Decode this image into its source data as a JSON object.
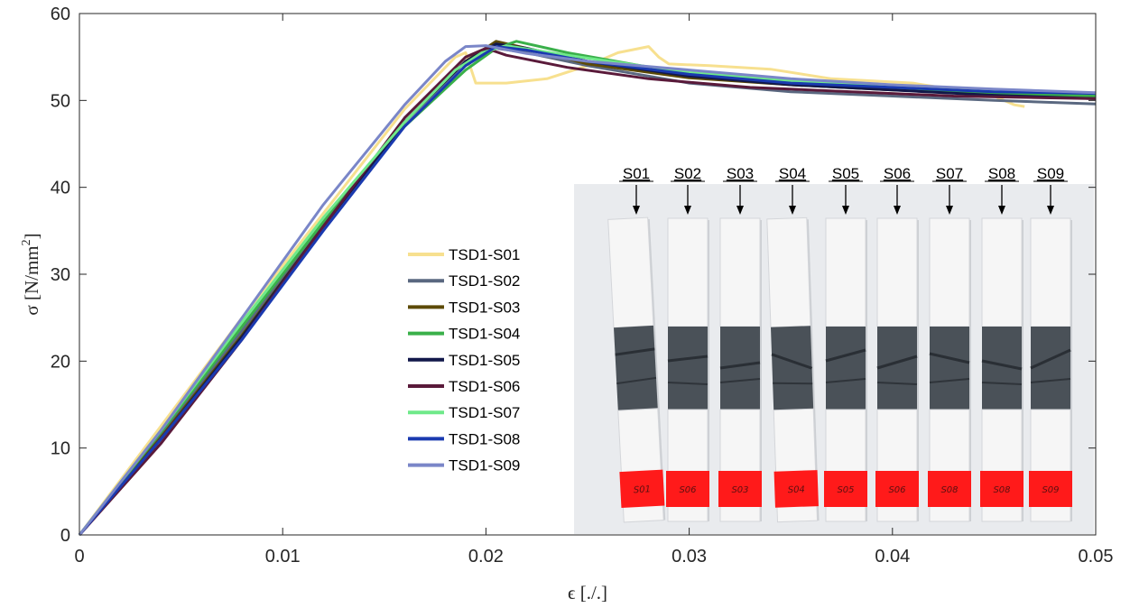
{
  "chart_data": {
    "type": "line",
    "title": "",
    "xlabel": "ϵ [./.]",
    "ylabel_prefix": "σ [N/mm",
    "ylabel_sup": "2",
    "ylabel_suffix": "]",
    "xlim": [
      0,
      0.05
    ],
    "ylim": [
      0,
      60
    ],
    "xticks": [
      0,
      0.01,
      0.02,
      0.03,
      0.04,
      0.05
    ],
    "xtick_labels": [
      "0",
      "0.01",
      "0.02",
      "0.03",
      "0.04",
      "0.05"
    ],
    "yticks": [
      0,
      10,
      20,
      30,
      40,
      50,
      60
    ],
    "ytick_labels": [
      "0",
      "10",
      "20",
      "30",
      "40",
      "50",
      "60"
    ],
    "grid": false,
    "legend_position": "center-left",
    "series": [
      {
        "name": "TSD1-S01",
        "color": "#f7e08f",
        "x": [
          0,
          0.004,
          0.008,
          0.012,
          0.016,
          0.0185,
          0.019,
          0.0195,
          0.021,
          0.023,
          0.025,
          0.0265,
          0.028,
          0.0285,
          0.029,
          0.031,
          0.034,
          0.037,
          0.041,
          0.045,
          0.046,
          0.0465
        ],
        "y": [
          0,
          12.5,
          25,
          37,
          49,
          55,
          55.5,
          52,
          52,
          52.5,
          54,
          55.5,
          56.2,
          55,
          54.2,
          54,
          53.6,
          52.5,
          52,
          50.5,
          49.5,
          49.3
        ]
      },
      {
        "name": "TSD1-S02",
        "color": "#5a6880",
        "x": [
          0,
          0.004,
          0.008,
          0.012,
          0.016,
          0.019,
          0.0205,
          0.022,
          0.025,
          0.03,
          0.035,
          0.04,
          0.045,
          0.05
        ],
        "y": [
          0,
          11.5,
          23.5,
          36,
          47.5,
          54.5,
          56,
          55.5,
          54,
          52,
          51,
          50.5,
          50,
          49.6
        ]
      },
      {
        "name": "TSD1-S03",
        "color": "#5c4a06",
        "x": [
          0,
          0.004,
          0.008,
          0.012,
          0.016,
          0.019,
          0.0205,
          0.022,
          0.025,
          0.03,
          0.035,
          0.04,
          0.045,
          0.05
        ],
        "y": [
          0,
          11.2,
          23,
          35.5,
          47.5,
          54.5,
          56.8,
          56,
          54.2,
          52.6,
          51.8,
          51.2,
          50.8,
          50.4
        ]
      },
      {
        "name": "TSD1-S04",
        "color": "#3ab04a",
        "x": [
          0,
          0.004,
          0.008,
          0.012,
          0.016,
          0.019,
          0.0205,
          0.0215,
          0.024,
          0.03,
          0.035,
          0.04,
          0.045,
          0.05
        ],
        "y": [
          0,
          11.8,
          24,
          36,
          47,
          53.5,
          56,
          56.8,
          55.5,
          53,
          52,
          51.3,
          50.8,
          50.5
        ]
      },
      {
        "name": "TSD1-S05",
        "color": "#12184a",
        "x": [
          0,
          0.004,
          0.008,
          0.012,
          0.016,
          0.019,
          0.0205,
          0.022,
          0.025,
          0.03,
          0.035,
          0.04,
          0.045,
          0.05
        ],
        "y": [
          0,
          11,
          22.8,
          35.5,
          47.5,
          54.5,
          56.5,
          56,
          54.5,
          52.8,
          51.8,
          51.2,
          50.6,
          50.2
        ]
      },
      {
        "name": "TSD1-S06",
        "color": "#5a1a3a",
        "x": [
          0,
          0.004,
          0.008,
          0.012,
          0.016,
          0.019,
          0.02,
          0.021,
          0.024,
          0.028,
          0.033,
          0.038,
          0.043,
          0.05
        ],
        "y": [
          0,
          10.5,
          22.5,
          35.5,
          48,
          55,
          56,
          55.2,
          53.8,
          52.5,
          51.5,
          51,
          50.5,
          50.2
        ]
      },
      {
        "name": "TSD1-S07",
        "color": "#6fe98a",
        "x": [
          0,
          0.004,
          0.008,
          0.012,
          0.016,
          0.0185,
          0.0198,
          0.021,
          0.024,
          0.03,
          0.035,
          0.04,
          0.045,
          0.05
        ],
        "y": [
          0,
          12,
          24.5,
          36.5,
          47.5,
          53.5,
          55.5,
          56.3,
          55.2,
          53.2,
          52.3,
          51.6,
          51.1,
          50.8
        ]
      },
      {
        "name": "TSD1-S08",
        "color": "#1a3ab0",
        "x": [
          0,
          0.004,
          0.008,
          0.012,
          0.016,
          0.019,
          0.0205,
          0.022,
          0.025,
          0.03,
          0.035,
          0.04,
          0.045,
          0.05
        ],
        "y": [
          0,
          11,
          22.5,
          35,
          47,
          54,
          56.2,
          55.8,
          54.5,
          53,
          52,
          51.5,
          51,
          50.8
        ]
      },
      {
        "name": "TSD1-S09",
        "color": "#7a86c8",
        "x": [
          0,
          0.004,
          0.008,
          0.012,
          0.016,
          0.018,
          0.019,
          0.02,
          0.022,
          0.025,
          0.03,
          0.035,
          0.04,
          0.045,
          0.05
        ],
        "y": [
          0,
          12,
          25,
          38,
          49.5,
          54.5,
          56.2,
          56.3,
          55.4,
          54.5,
          53.5,
          52.5,
          51.8,
          51.3,
          50.9
        ]
      }
    ]
  },
  "photo": {
    "description_labels": [
      "S01",
      "S02",
      "S03",
      "S04",
      "S05",
      "S06",
      "S07",
      "S08",
      "S09"
    ],
    "tag_text": [
      "S01",
      "S06",
      "S03",
      "S04",
      "S05",
      "S06",
      "S08",
      "S08",
      "S09"
    ],
    "colors": {
      "background": "#e9ebee",
      "specimen": "#f6f6f6",
      "core": "#4a5158",
      "tag": "#ff1a1a"
    }
  }
}
